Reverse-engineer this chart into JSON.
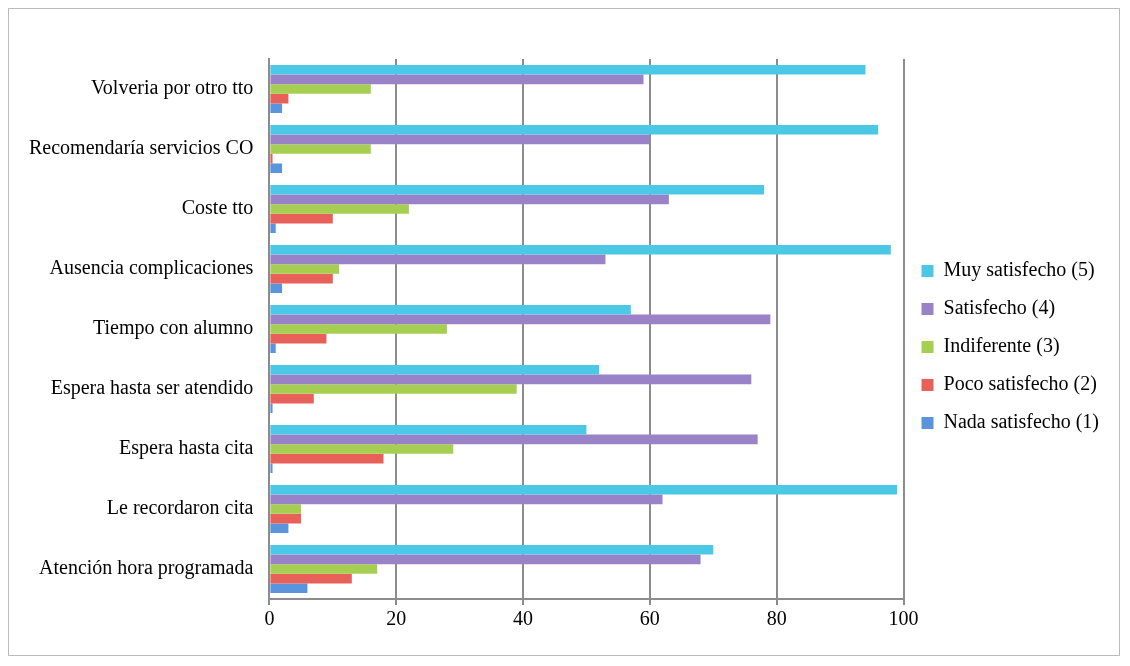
{
  "chart_data": {
    "type": "bar",
    "orientation": "horizontal",
    "categories": [
      "Volveria por otro tto",
      "Recomendaría servicios CO",
      "Coste tto",
      "Ausencia complicaciones",
      "Tiempo con alumno",
      "Espera hasta ser atendido",
      "Espera hasta cita",
      "Le recordaron cita",
      "Atención hora programada"
    ],
    "series": [
      {
        "name": "Muy satisfecho (5)",
        "color": "#4bc8e6",
        "values": [
          94,
          96,
          78,
          98,
          57,
          52,
          50,
          99,
          70
        ]
      },
      {
        "name": "Satisfecho (4)",
        "color": "#9a82c8",
        "values": [
          59,
          60,
          63,
          53,
          79,
          76,
          77,
          62,
          68
        ]
      },
      {
        "name": "Indiferente (3)",
        "color": "#a6cf52",
        "values": [
          16,
          16,
          22,
          11,
          28,
          39,
          29,
          5,
          17
        ]
      },
      {
        "name": "Poco satisfecho (2)",
        "color": "#e8605a",
        "values": [
          3,
          0.5,
          10,
          10,
          9,
          7,
          18,
          5,
          13
        ]
      },
      {
        "name": "Nada satisfecho (1)",
        "color": "#5a94dc",
        "values": [
          2,
          2,
          1,
          2,
          1,
          0.5,
          0.5,
          3,
          6
        ]
      }
    ],
    "xlim": [
      0,
      100
    ],
    "xticks": [
      0,
      20,
      40,
      60,
      80,
      100
    ],
    "grid": "x",
    "legend": "right"
  }
}
